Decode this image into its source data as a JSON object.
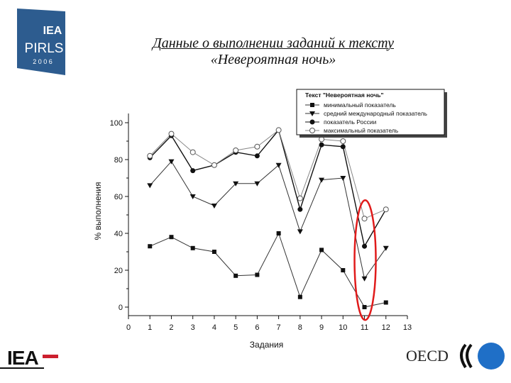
{
  "header": {
    "title_line1": "Данные о выполнении заданий к тексту",
    "title_line2": "«Невероятная ночь»"
  },
  "logos": {
    "pirls_top": "IEA",
    "pirls_name": "PIRLS",
    "pirls_year": "2 0 0 6",
    "iea_bottom": "IEA",
    "oecd": "OECD"
  },
  "colors": {
    "pirls_blue": "#2d5c8f",
    "iea_red": "#cc1f2e",
    "oecd_blue": "#1f6fc7",
    "highlight_red": "#e01b1b"
  },
  "chart_data": {
    "type": "line",
    "legend_title": "Текст \"Невероятная ночь\"",
    "legend_position": "top-right",
    "xlabel": "Задания",
    "ylabel": "% выполнения",
    "xlim": [
      0,
      13
    ],
    "ylim": [
      0,
      100
    ],
    "x_ticks": [
      0,
      1,
      2,
      3,
      4,
      5,
      6,
      7,
      8,
      9,
      10,
      11,
      12,
      13
    ],
    "y_ticks": [
      0,
      20,
      40,
      60,
      80,
      100
    ],
    "x": [
      1,
      2,
      3,
      4,
      5,
      6,
      7,
      8,
      9,
      10,
      11,
      12
    ],
    "series": [
      {
        "name": "минимальный показатель",
        "marker": "square",
        "values": [
          33,
          38,
          32,
          30,
          17,
          17.5,
          40,
          5.5,
          31,
          20,
          0,
          2.5
        ]
      },
      {
        "name": "средний международный показатель",
        "marker": "triangle-down",
        "values": [
          66,
          79,
          60,
          55,
          67,
          67,
          77,
          41,
          69,
          70,
          15.5,
          32
        ]
      },
      {
        "name": "показатель России",
        "marker": "circle-filled",
        "values": [
          81,
          93,
          74,
          77,
          84,
          82,
          96,
          53,
          88,
          87,
          33,
          53
        ]
      },
      {
        "name": "максимальный показатель",
        "marker": "circle-open",
        "values": [
          82,
          94,
          84,
          77,
          85,
          87,
          96,
          59,
          91,
          90,
          48,
          53
        ]
      }
    ],
    "highlight": {
      "shape": "ellipse",
      "x": 11,
      "y_range": [
        -7,
        58
      ]
    }
  }
}
